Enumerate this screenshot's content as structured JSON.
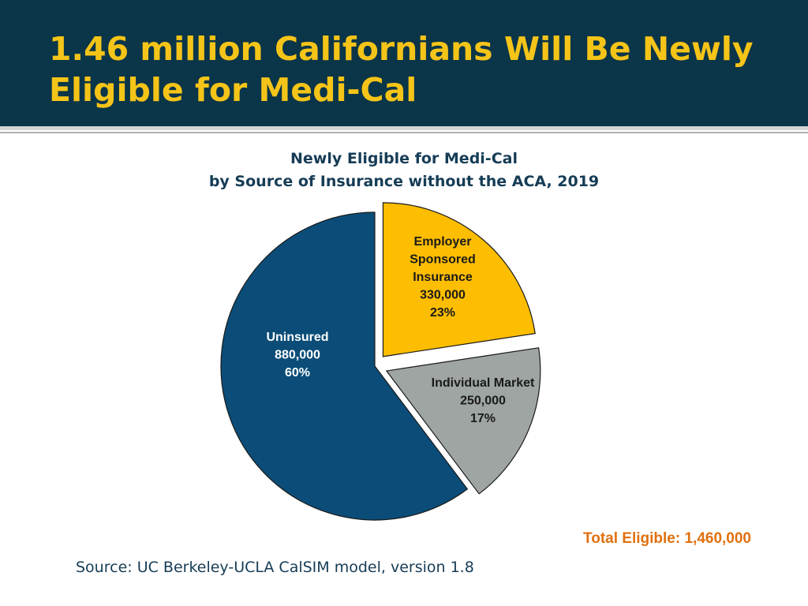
{
  "slide": {
    "title": "1.46 million Californians Will Be Newly Eligible for Medi-Cal",
    "total_label": "Total Eligible: 1,460,000",
    "source": "Source: UC Berkeley-UCLA CalSIM model, version 1.8"
  },
  "chart_data": {
    "type": "pie",
    "title": "Newly Eligible for Medi-Cal",
    "subtitle": "by Source of Insurance without the ACA, 2019",
    "slices": [
      {
        "label": "Employer Sponsored Insurance",
        "label_lines": [
          "Employer",
          "Sponsored",
          "Insurance"
        ],
        "value": 330000,
        "value_label": "330,000",
        "percent": 23,
        "percent_label": "23%",
        "color": "#fdbd00",
        "exploded": true
      },
      {
        "label": "Individual Market",
        "label_lines": [
          "Individual Market"
        ],
        "value": 250000,
        "value_label": "250,000",
        "percent": 17,
        "percent_label": "17%",
        "color": "#9fa5a3",
        "exploded": true
      },
      {
        "label": "Uninsured",
        "label_lines": [
          "Uninsured"
        ],
        "value": 880000,
        "value_label": "880,000",
        "percent": 60,
        "percent_label": "60%",
        "color": "#0b4d78",
        "exploded": false
      }
    ]
  },
  "colors": {
    "title_bar": "#0b3548",
    "title_text": "#f5c418",
    "total_text": "#e0700f",
    "text_dark": "#163c56"
  }
}
